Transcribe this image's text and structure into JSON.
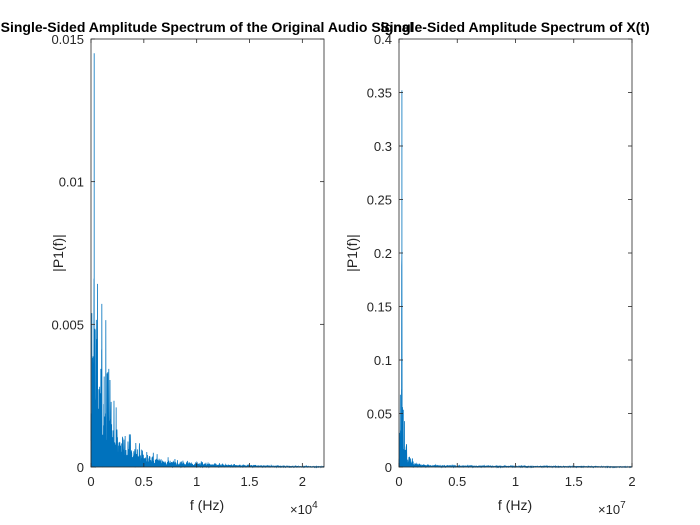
{
  "chart_data": [
    {
      "type": "line",
      "title": "Single-Sided Amplitude Spectrum of the Original Audio Signal",
      "xlabel": "f (Hz)",
      "ylabel": "|P1(f)|",
      "xlim": [
        0,
        22050
      ],
      "ylim": [
        0,
        0.015
      ],
      "x_ticks": [
        0,
        5000,
        10000,
        15000,
        20000
      ],
      "x_tick_labels": [
        "0",
        "0.5",
        "1",
        "1.5",
        "2"
      ],
      "x_exponent_base": "×10",
      "x_exponent": "4",
      "y_ticks": [
        0,
        0.005,
        0.01,
        0.015
      ],
      "y_tick_labels": [
        "0",
        "0.005",
        "0.01",
        "0.015"
      ],
      "color": "#0072BD",
      "envelope": {
        "x": [
          0,
          100,
          200,
          300,
          400,
          500,
          600,
          700,
          800,
          900,
          1000,
          1200,
          1400,
          1600,
          1800,
          2000,
          2300,
          2600,
          3000,
          3300,
          3600,
          4000,
          4500,
          5000,
          5500,
          6000,
          7000,
          8000,
          9000,
          10000,
          11000,
          12000,
          13000,
          14000,
          15000,
          16000,
          18000,
          20000,
          22050
        ],
        "peak": [
          0.0025,
          0.008,
          0.0125,
          0.0145,
          0.011,
          0.012,
          0.0076,
          0.006,
          0.0068,
          0.005,
          0.0063,
          0.0053,
          0.0057,
          0.0044,
          0.0038,
          0.0032,
          0.0023,
          0.002,
          0.0016,
          0.0014,
          0.0012,
          0.0011,
          0.0009,
          0.0007,
          0.0006,
          0.0005,
          0.0004,
          0.0003,
          0.00025,
          0.0002,
          0.00018,
          0.00015,
          0.00012,
          0.0001,
          9e-05,
          7e-05,
          5e-05,
          3e-05,
          2e-05
        ],
        "fill": [
          0.001,
          0.002,
          0.0028,
          0.003,
          0.0026,
          0.0022,
          0.0018,
          0.0016,
          0.0015,
          0.0013,
          0.0012,
          0.0011,
          0.001,
          0.0009,
          0.0008,
          0.0007,
          0.0006,
          0.0005,
          0.0004,
          0.00035,
          0.0003,
          0.00028,
          0.00024,
          0.0002,
          0.00018,
          0.00016,
          0.00013,
          0.0001,
          9e-05,
          8e-05,
          7e-05,
          6e-05,
          5e-05,
          4e-05,
          3e-05,
          3e-05,
          2e-05,
          1e-05,
          1e-05
        ]
      }
    },
    {
      "type": "line",
      "title": "Single-Sided Amplitude Spectrum of X(t)",
      "xlabel": "f (Hz)",
      "ylabel": "|P1(f)|",
      "xlim": [
        0,
        20000000
      ],
      "ylim": [
        0,
        0.4
      ],
      "x_ticks": [
        0,
        5000000,
        10000000,
        15000000,
        20000000
      ],
      "x_tick_labels": [
        "0",
        "0.5",
        "1",
        "1.5",
        "2"
      ],
      "x_exponent_base": "×10",
      "x_exponent": "7",
      "y_ticks": [
        0,
        0.05,
        0.1,
        0.15,
        0.2,
        0.25,
        0.3,
        0.35,
        0.4
      ],
      "y_tick_labels": [
        "0",
        "0.05",
        "0.1",
        "0.15",
        "0.2",
        "0.25",
        "0.3",
        "0.35",
        "0.4"
      ],
      "color": "#0072BD",
      "envelope": {
        "x": [
          0,
          100000,
          200000,
          250000,
          300000,
          400000,
          500000,
          700000,
          1000000,
          1500000,
          2000000,
          3000000,
          5000000,
          8000000,
          12000000,
          16000000,
          18000000,
          20000000
        ],
        "peak": [
          0.02,
          0.06,
          0.2,
          0.352,
          0.14,
          0.06,
          0.04,
          0.02,
          0.01,
          0.005,
          0.003,
          0.002,
          0.0015,
          0.001,
          0.0008,
          0.0006,
          0.0004,
          0.0003
        ],
        "fill": [
          0.005,
          0.015,
          0.025,
          0.03,
          0.02,
          0.012,
          0.008,
          0.005,
          0.003,
          0.002,
          0.0015,
          0.001,
          0.0008,
          0.0006,
          0.0005,
          0.0004,
          0.0003,
          0.0002
        ]
      }
    }
  ]
}
